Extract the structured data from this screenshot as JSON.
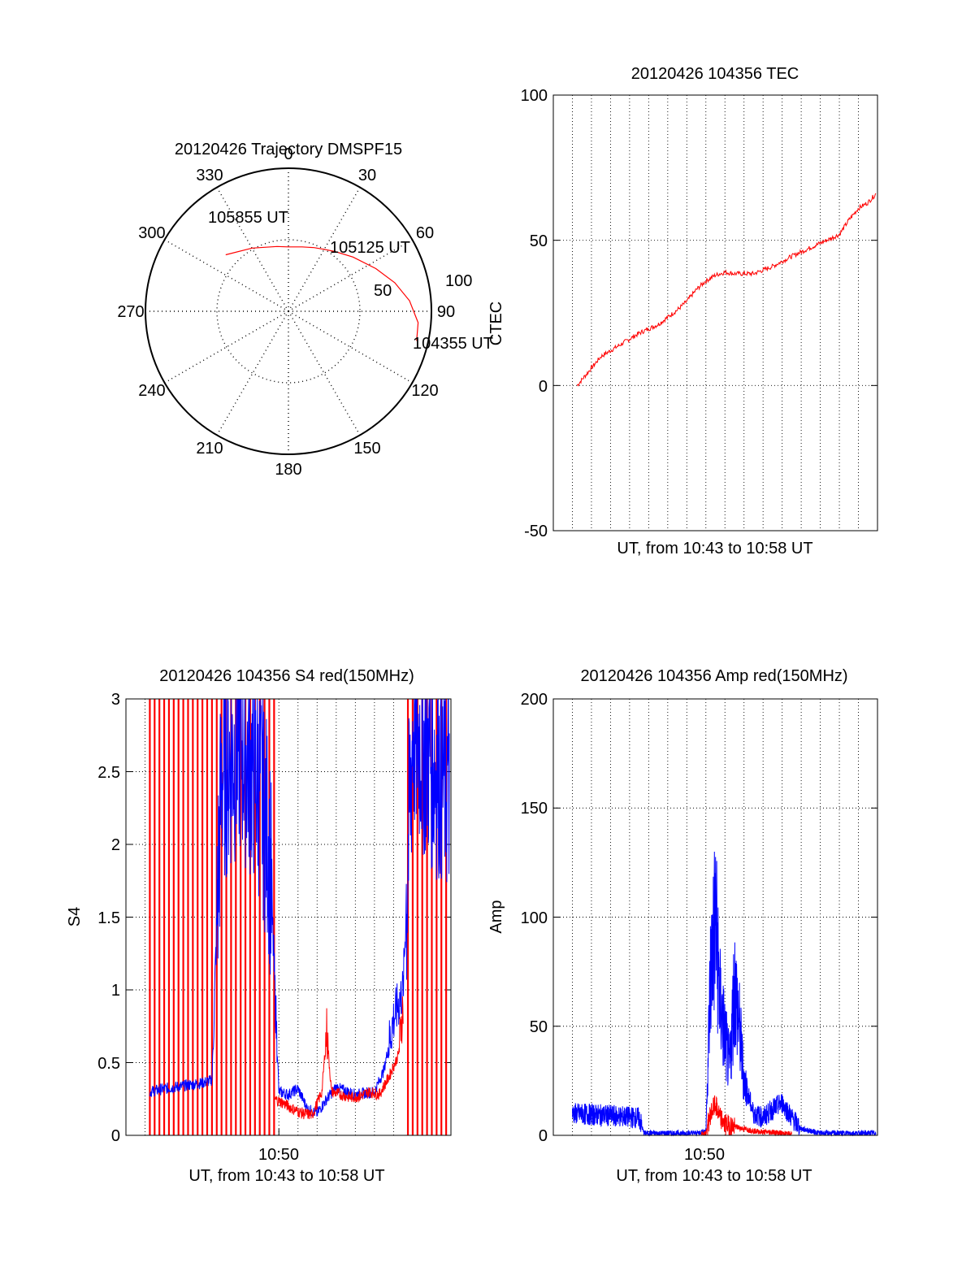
{
  "colors": {
    "series_red": "#ff0000",
    "series_blue": "#0000ff",
    "axis": "#000000",
    "grid": "#000000",
    "background": "#ffffff"
  },
  "chart_data": [
    {
      "id": "trajectory",
      "type": "polar",
      "title": "20120426 Trajectory DMSPF15",
      "azimuth_labels": [
        "0",
        "30",
        "60",
        "90",
        "120",
        "150",
        "180",
        "210",
        "240",
        "270",
        "300",
        "330"
      ],
      "radial_ticks": [
        "50",
        "100"
      ],
      "radial_range": [
        0,
        100
      ],
      "grid": true,
      "series": [
        {
          "color": "#ff0000",
          "azimuth": [
            103,
            95,
            85,
            75,
            64,
            50,
            38,
            30,
            22,
            12,
            0,
            -10,
            -30,
            -48
          ],
          "zenith": [
            92,
            91,
            85,
            77,
            68,
            59,
            53,
            50,
            48,
            46,
            45,
            46,
            51,
            59
          ]
        }
      ],
      "annotations": [
        {
          "label": "105855 UT",
          "azimuth": -48,
          "zenith": 59
        },
        {
          "label": "105125 UT",
          "azimuth": 56,
          "zenith": 58
        },
        {
          "label": "104355 UT",
          "azimuth": 103,
          "zenith": 92
        }
      ]
    },
    {
      "id": "tec",
      "type": "line",
      "title": "20120426 104356 TEC",
      "xlabel": "UT, from 10:43 to 10:58 UT",
      "ylabel": "CTEC",
      "xlim": [
        "10:42:00",
        "10:59:00"
      ],
      "ylim": [
        -50,
        100
      ],
      "yticks": [
        "-50",
        "0",
        "50",
        "100"
      ],
      "xtick_labels": [],
      "grid": true,
      "series": [
        {
          "color": "#ff0000",
          "x": [
            "10:43:15",
            "10:43:45",
            "10:44:30",
            "10:45:30",
            "10:46:30",
            "10:47:30",
            "10:48:30",
            "10:49:00",
            "10:49:30",
            "10:50:00",
            "10:50:30",
            "10:51:00",
            "10:51:30",
            "10:52:30",
            "10:53:30",
            "10:54:30",
            "10:55:30",
            "10:56:30",
            "10:57:00",
            "10:57:30",
            "10:58:00",
            "10:58:30",
            "10:58:55"
          ],
          "values": [
            0,
            4,
            10,
            14,
            18,
            21,
            26,
            29,
            33,
            36,
            38,
            39,
            38.5,
            38.5,
            41,
            44.5,
            47.5,
            50.5,
            52,
            57,
            61,
            63,
            66
          ]
        }
      ]
    },
    {
      "id": "s4",
      "type": "line",
      "title": "20120426 104356 S4 red(150MHz)",
      "xlabel": "UT, from 10:43 to 10:58 UT",
      "ylabel": "S4",
      "xlim": [
        "10:42:00",
        "10:59:00"
      ],
      "ylim": [
        0,
        3
      ],
      "yticks": [
        "0",
        "0.5",
        "1",
        "1.5",
        "2",
        "2.5",
        "3"
      ],
      "xtick_labels": [
        {
          "label": "10:50",
          "x": "10:50:00"
        }
      ],
      "grid": true,
      "series": [
        {
          "color": "#0000ff",
          "x": [
            "10:43:15",
            "10:44:00",
            "10:45:00",
            "10:46:00",
            "10:46:30",
            "10:47:00",
            "10:48:00",
            "10:49:00",
            "10:49:30",
            "10:50:00",
            "10:50:30",
            "10:51:00",
            "10:51:30",
            "10:52:00",
            "10:52:30",
            "10:53:00",
            "10:54:00",
            "10:55:00",
            "10:55:30",
            "10:56:00",
            "10:56:30",
            "10:57:00",
            "10:58:00",
            "10:58:55"
          ],
          "values": [
            0.3,
            0.32,
            0.34,
            0.36,
            0.38,
            2.5,
            2.7,
            2.4,
            2.0,
            0.3,
            0.28,
            0.32,
            0.18,
            0.15,
            0.25,
            0.33,
            0.28,
            0.3,
            0.45,
            0.8,
            1.0,
            2.8,
            2.6,
            2.4
          ]
        },
        {
          "color": "#ff0000",
          "x": [
            "10:49:45",
            "10:50:15",
            "10:50:45",
            "10:51:15",
            "10:51:45",
            "10:52:15",
            "10:52:30",
            "10:52:45",
            "10:53:15",
            "10:53:45",
            "10:54:15",
            "10:54:45",
            "10:55:15",
            "10:55:45",
            "10:56:15",
            "10:56:30"
          ],
          "values": [
            0.25,
            0.22,
            0.18,
            0.15,
            0.14,
            0.3,
            0.72,
            0.3,
            0.28,
            0.26,
            0.27,
            0.3,
            0.28,
            0.4,
            0.55,
            0.9
          ]
        }
      ],
      "red_spikes_x": [
        "10:43:15",
        "10:43:30",
        "10:43:45",
        "10:44:00",
        "10:44:15",
        "10:44:30",
        "10:44:45",
        "10:45:00",
        "10:45:15",
        "10:45:30",
        "10:45:45",
        "10:46:00",
        "10:46:15",
        "10:46:30",
        "10:46:45",
        "10:47:00",
        "10:47:15",
        "10:47:30",
        "10:47:45",
        "10:48:00",
        "10:48:15",
        "10:48:30",
        "10:48:45",
        "10:49:00",
        "10:49:15",
        "10:49:30",
        "10:49:45",
        "10:56:45",
        "10:57:00",
        "10:57:15",
        "10:57:30",
        "10:57:45",
        "10:58:00",
        "10:58:15",
        "10:58:30",
        "10:58:45"
      ]
    },
    {
      "id": "amp",
      "type": "line",
      "title": "20120426 104356 Amp red(150MHz)",
      "xlabel": "UT, from 10:43 to 10:58 UT",
      "ylabel": "Amp",
      "xlim": [
        "10:42:00",
        "10:59:00"
      ],
      "ylim": [
        0,
        200
      ],
      "yticks": [
        "0",
        "50",
        "100",
        "150",
        "200"
      ],
      "xtick_labels": [
        {
          "label": "10:50",
          "x": "10:50:00"
        }
      ],
      "grid": true,
      "series": [
        {
          "color": "#0000ff",
          "x": [
            "10:43:00",
            "10:45:00",
            "10:46:30",
            "10:46:45",
            "10:48:00",
            "10:49:30",
            "10:50:00",
            "10:50:15",
            "10:50:30",
            "10:50:45",
            "10:51:00",
            "10:51:15",
            "10:51:30",
            "10:51:45",
            "10:52:00",
            "10:52:30",
            "10:53:00",
            "10:53:30",
            "10:54:00",
            "10:54:30",
            "10:55:00",
            "10:56:00",
            "10:58:55"
          ],
          "values": [
            10,
            9,
            8,
            1,
            1,
            1,
            2,
            75,
            100,
            60,
            45,
            30,
            70,
            50,
            25,
            10,
            8,
            12,
            15,
            8,
            3,
            1,
            1
          ]
        },
        {
          "color": "#ff0000",
          "x": [
            "10:49:45",
            "10:50:00",
            "10:50:15",
            "10:50:30",
            "10:50:45",
            "10:51:00",
            "10:51:30",
            "10:52:00",
            "10:52:30",
            "10:53:00",
            "10:53:30",
            "10:54:00",
            "10:54:30"
          ],
          "values": [
            0.5,
            1,
            10,
            14,
            8,
            5,
            4,
            3,
            2,
            1.5,
            1.5,
            1,
            0.5
          ]
        }
      ]
    }
  ]
}
